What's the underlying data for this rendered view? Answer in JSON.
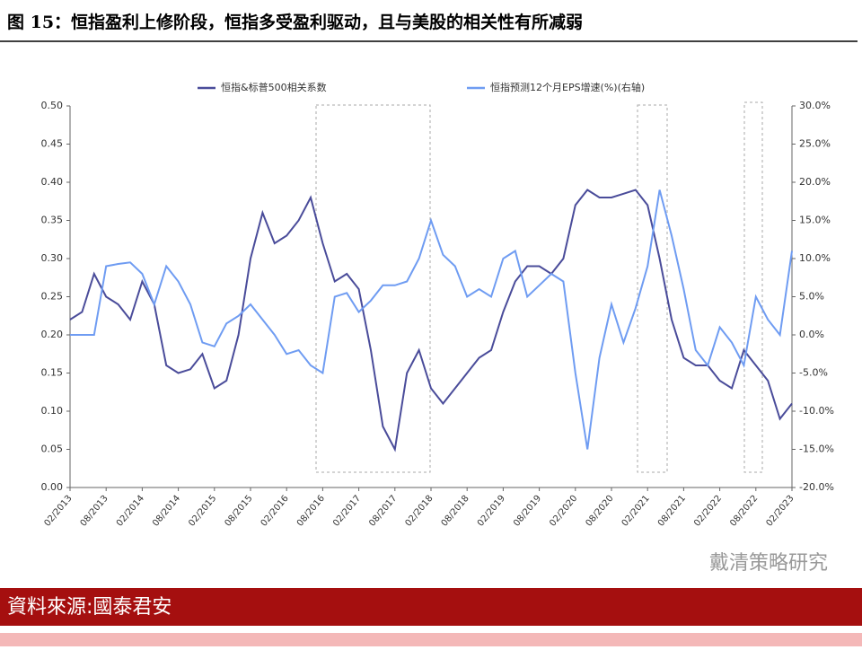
{
  "chart_data": {
    "type": "line",
    "title": "图 15：恒指盈利上修阶段，恒指多受盈利驱动，且与美股的相关性有所减弱",
    "source": "資料來源:國泰君安",
    "watermark": "戴清策略研究",
    "x": [
      "02/2013",
      "04/2013",
      "06/2013",
      "08/2013",
      "10/2013",
      "12/2013",
      "02/2014",
      "04/2014",
      "06/2014",
      "08/2014",
      "10/2014",
      "12/2014",
      "02/2015",
      "04/2015",
      "06/2015",
      "08/2015",
      "10/2015",
      "12/2015",
      "02/2016",
      "04/2016",
      "06/2016",
      "08/2016",
      "10/2016",
      "12/2016",
      "02/2017",
      "04/2017",
      "06/2017",
      "08/2017",
      "10/2017",
      "12/2017",
      "02/2018",
      "04/2018",
      "06/2018",
      "08/2018",
      "10/2018",
      "12/2018",
      "02/2019",
      "04/2019",
      "06/2019",
      "08/2019",
      "10/2019",
      "12/2019",
      "02/2020",
      "04/2020",
      "06/2020",
      "08/2020",
      "10/2020",
      "12/2020",
      "02/2021",
      "04/2021",
      "06/2021",
      "08/2021",
      "10/2021",
      "12/2021",
      "02/2022",
      "04/2022",
      "06/2022",
      "08/2022",
      "10/2022",
      "12/2022",
      "02/2023"
    ],
    "xticks": [
      "02/2013",
      "08/2013",
      "02/2014",
      "08/2014",
      "02/2015",
      "08/2015",
      "02/2016",
      "08/2016",
      "02/2017",
      "08/2017",
      "02/2018",
      "08/2018",
      "02/2019",
      "08/2019",
      "02/2020",
      "08/2020",
      "02/2021",
      "08/2021",
      "02/2022",
      "08/2022",
      "02/2023"
    ],
    "series": [
      {
        "name": "恒指&标普500相关系数",
        "color": "#4a4c9a",
        "axis": "y",
        "values": [
          0.22,
          0.23,
          0.28,
          0.25,
          0.24,
          0.22,
          0.27,
          0.24,
          0.16,
          0.15,
          0.155,
          0.175,
          0.13,
          0.14,
          0.2,
          0.3,
          0.36,
          0.32,
          0.33,
          0.35,
          0.38,
          0.32,
          0.27,
          0.28,
          0.26,
          0.18,
          0.08,
          0.05,
          0.15,
          0.18,
          0.13,
          0.11,
          0.13,
          0.15,
          0.17,
          0.18,
          0.23,
          0.27,
          0.29,
          0.29,
          0.28,
          0.3,
          0.37,
          0.39,
          0.38,
          0.38,
          0.385,
          0.39,
          0.37,
          0.3,
          0.22,
          0.17,
          0.16,
          0.16,
          0.14,
          0.13,
          0.18,
          0.16,
          0.14,
          0.09,
          0.11
        ]
      },
      {
        "name": "恒指预测12个月EPS增速(%)(右轴)",
        "color": "#6f9cf2",
        "axis": "y2",
        "values": [
          0,
          0,
          0,
          9,
          9.3,
          9.5,
          8,
          4,
          9,
          7,
          4,
          -1,
          -1.5,
          1.5,
          2.5,
          4,
          2,
          0,
          -2.5,
          -2,
          -4,
          -5,
          5,
          5.5,
          3,
          4.5,
          6.5,
          6.5,
          7,
          10,
          15,
          10.5,
          9,
          5,
          6,
          5,
          10,
          11,
          5,
          6.5,
          8,
          7,
          -5,
          -15,
          -3,
          4,
          -1,
          3.5,
          9,
          19,
          13,
          6,
          -2,
          -4,
          1,
          -1,
          -4,
          5,
          2,
          0,
          11
        ]
      }
    ],
    "ylim": [
      0,
      0.5
    ],
    "yticks": [
      {
        "value": 0,
        "label": "0.00"
      },
      {
        "value": 0.05,
        "label": "0.05"
      },
      {
        "value": 0.1,
        "label": "0.10"
      },
      {
        "value": 0.15,
        "label": "0.15"
      },
      {
        "value": 0.2,
        "label": "0.20"
      },
      {
        "value": 0.25,
        "label": "0.25"
      },
      {
        "value": 0.3,
        "label": "0.30"
      },
      {
        "value": 0.35,
        "label": "0.35"
      },
      {
        "value": 0.4,
        "label": "0.40"
      },
      {
        "value": 0.45,
        "label": "0.45"
      },
      {
        "value": 0.5,
        "label": "0.50"
      }
    ],
    "y2lim": [
      -20,
      30
    ],
    "y2ticks": [
      {
        "value": -20,
        "label": "-20.0%"
      },
      {
        "value": -15,
        "label": "-15.0%"
      },
      {
        "value": -10,
        "label": "-10.0%"
      },
      {
        "value": -5,
        "label": "-5.0%"
      },
      {
        "value": 0,
        "label": "0.0%"
      },
      {
        "value": 5,
        "label": "5.0%"
      },
      {
        "value": 10,
        "label": "10.0%"
      },
      {
        "value": 15,
        "label": "15.0%"
      },
      {
        "value": 20,
        "label": "20.0%"
      },
      {
        "value": 25,
        "label": "25.0%"
      },
      {
        "value": 30,
        "label": "30.0%"
      }
    ],
    "legend": "top"
  }
}
